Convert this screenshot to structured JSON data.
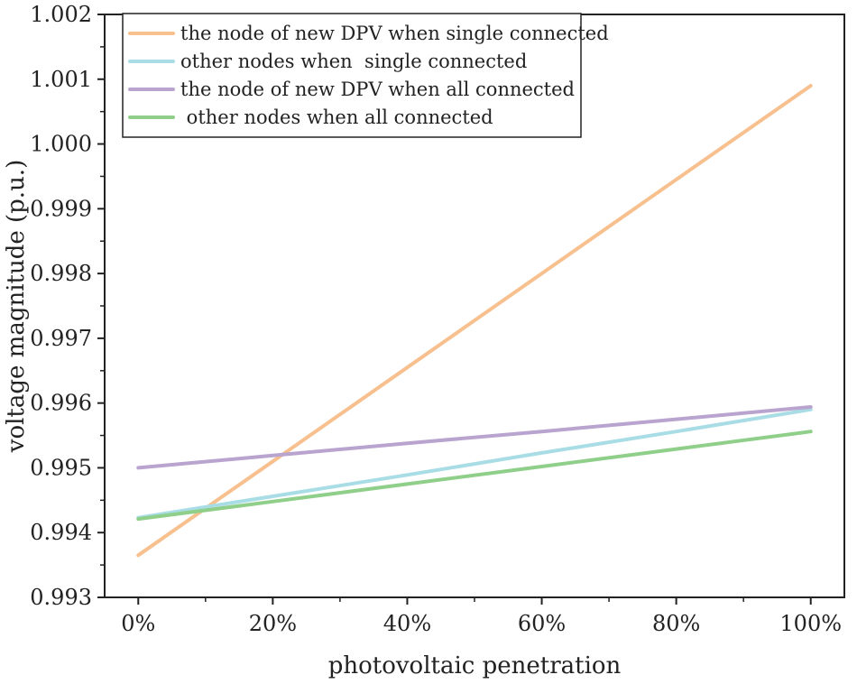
{
  "chart_data": {
    "type": "line",
    "title": "",
    "xlabel": "photovoltaic penetration",
    "ylabel": "voltage magnitude (p.u.)",
    "x": [
      0,
      20,
      40,
      60,
      80,
      100
    ],
    "x_tick_labels": [
      "0%",
      "20%",
      "40%",
      "60%",
      "80%",
      "100%"
    ],
    "xlim": [
      -5,
      105
    ],
    "ylim": [
      0.993,
      1.002
    ],
    "y_ticks": [
      0.993,
      0.994,
      0.995,
      0.996,
      0.997,
      0.998,
      0.999,
      1.0,
      1.001,
      1.002
    ],
    "y_tick_labels": [
      "0.993",
      "0.994",
      "0.995",
      "0.996",
      "0.997",
      "0.998",
      "0.999",
      "1.000",
      "1.001",
      "1.002"
    ],
    "grid": false,
    "legend_position": "top-left",
    "series": [
      {
        "name": "the node of new DPV when single connected",
        "color": "#f7c08e",
        "values": [
          0.99365,
          0.9951,
          0.99655,
          0.998,
          0.99945,
          1.0009
        ]
      },
      {
        "name": "other nodes when  single connected",
        "color": "#a9dde6",
        "values": [
          0.99423,
          0.99456,
          0.99489,
          0.99523,
          0.99556,
          0.9959
        ]
      },
      {
        "name": "the node of new DPV when all connected",
        "color": "#b9a3cf",
        "values": [
          0.995,
          0.99519,
          0.99538,
          0.99556,
          0.99575,
          0.99594
        ]
      },
      {
        "name": " other nodes when all connected",
        "color": "#8fcf8a",
        "values": [
          0.99421,
          0.99448,
          0.99475,
          0.99502,
          0.99529,
          0.99556
        ]
      }
    ]
  }
}
